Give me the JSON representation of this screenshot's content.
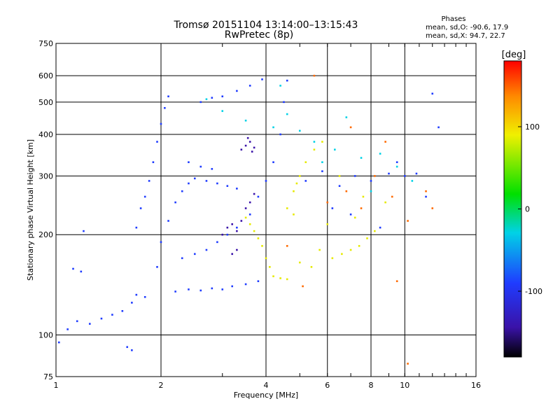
{
  "chart_data": {
    "type": "scatter",
    "title": "Tromsø 20151104 13:14:00–13:15:43",
    "subtitle": "RwPretec (8p)",
    "xlabel": "Frequency [MHz]",
    "ylabel": "Stationary phase Virtual Height [km]",
    "x_scale": "log",
    "y_scale": "log",
    "xlim": [
      1,
      16
    ],
    "ylim": [
      75,
      750
    ],
    "x_ticks": [
      1,
      2,
      4,
      6,
      8,
      10,
      16
    ],
    "x_ticks_labels": [
      "1",
      "2",
      "4",
      "6",
      "8",
      "10",
      "16"
    ],
    "y_ticks": [
      75,
      100,
      200,
      300,
      400,
      500,
      600,
      750
    ],
    "y_ticks_labels": [
      "75",
      "100",
      "200",
      "300",
      "400",
      "500",
      "600",
      "750"
    ],
    "grid": true,
    "stats": {
      "heading": "Phases",
      "line_o": "mean, sd,O: -90.6, 17.9",
      "line_x": "mean, sd,X:  94.7, 22.7"
    },
    "colorbar": {
      "label": "[deg]",
      "min": -180,
      "max": 180,
      "ticks": [
        100,
        0,
        -100
      ],
      "ticks_labels": [
        "100",
        "0",
        "-100"
      ]
    },
    "series": [
      {
        "phase_deg": -100,
        "color": "#1f3cff",
        "points": [
          {
            "x": 1.02,
            "y": 95
          },
          {
            "x": 1.08,
            "y": 104
          },
          {
            "x": 1.15,
            "y": 110
          },
          {
            "x": 1.25,
            "y": 108
          },
          {
            "x": 1.35,
            "y": 112
          },
          {
            "x": 1.45,
            "y": 115
          },
          {
            "x": 1.55,
            "y": 118
          },
          {
            "x": 1.65,
            "y": 125
          },
          {
            "x": 1.7,
            "y": 132
          },
          {
            "x": 1.8,
            "y": 130
          },
          {
            "x": 1.6,
            "y": 92
          },
          {
            "x": 1.65,
            "y": 90
          },
          {
            "x": 1.12,
            "y": 158
          },
          {
            "x": 1.18,
            "y": 155
          },
          {
            "x": 1.2,
            "y": 205
          },
          {
            "x": 1.7,
            "y": 210
          },
          {
            "x": 1.75,
            "y": 240
          },
          {
            "x": 1.8,
            "y": 260
          },
          {
            "x": 1.85,
            "y": 290
          },
          {
            "x": 1.9,
            "y": 330
          },
          {
            "x": 1.95,
            "y": 380
          },
          {
            "x": 2.0,
            "y": 430
          },
          {
            "x": 2.05,
            "y": 480
          },
          {
            "x": 2.1,
            "y": 520
          },
          {
            "x": 1.95,
            "y": 160
          },
          {
            "x": 2.0,
            "y": 190
          },
          {
            "x": 2.1,
            "y": 220
          },
          {
            "x": 2.2,
            "y": 250
          },
          {
            "x": 2.3,
            "y": 270
          },
          {
            "x": 2.4,
            "y": 285
          },
          {
            "x": 2.5,
            "y": 295
          },
          {
            "x": 2.7,
            "y": 290
          },
          {
            "x": 2.9,
            "y": 285
          },
          {
            "x": 3.1,
            "y": 280
          },
          {
            "x": 3.3,
            "y": 275
          },
          {
            "x": 2.2,
            "y": 135
          },
          {
            "x": 2.4,
            "y": 137
          },
          {
            "x": 2.6,
            "y": 136
          },
          {
            "x": 2.8,
            "y": 138
          },
          {
            "x": 3.0,
            "y": 137
          },
          {
            "x": 3.2,
            "y": 140
          },
          {
            "x": 3.5,
            "y": 142
          },
          {
            "x": 3.8,
            "y": 145
          },
          {
            "x": 2.3,
            "y": 170
          },
          {
            "x": 2.5,
            "y": 175
          },
          {
            "x": 2.7,
            "y": 180
          },
          {
            "x": 2.9,
            "y": 190
          },
          {
            "x": 3.1,
            "y": 200
          },
          {
            "x": 3.3,
            "y": 210
          },
          {
            "x": 3.6,
            "y": 230
          },
          {
            "x": 3.8,
            "y": 260
          },
          {
            "x": 4.0,
            "y": 290
          },
          {
            "x": 4.2,
            "y": 330
          },
          {
            "x": 4.4,
            "y": 400
          },
          {
            "x": 4.5,
            "y": 500
          },
          {
            "x": 4.6,
            "y": 580
          },
          {
            "x": 3.0,
            "y": 520
          },
          {
            "x": 3.3,
            "y": 540
          },
          {
            "x": 3.6,
            "y": 560
          },
          {
            "x": 3.9,
            "y": 585
          },
          {
            "x": 2.6,
            "y": 500
          },
          {
            "x": 2.8,
            "y": 515
          },
          {
            "x": 2.4,
            "y": 330
          },
          {
            "x": 2.6,
            "y": 320
          },
          {
            "x": 2.8,
            "y": 315
          },
          {
            "x": 5.2,
            "y": 290
          },
          {
            "x": 5.8,
            "y": 310
          },
          {
            "x": 6.5,
            "y": 280
          },
          {
            "x": 7.2,
            "y": 300
          },
          {
            "x": 8.0,
            "y": 290
          },
          {
            "x": 9.0,
            "y": 305
          },
          {
            "x": 10.0,
            "y": 300
          },
          {
            "x": 10.8,
            "y": 305
          },
          {
            "x": 6.2,
            "y": 240
          },
          {
            "x": 7.0,
            "y": 230
          },
          {
            "x": 8.5,
            "y": 210
          },
          {
            "x": 9.5,
            "y": 330
          },
          {
            "x": 12.0,
            "y": 530
          },
          {
            "x": 12.5,
            "y": 420
          },
          {
            "x": 11.5,
            "y": 260
          }
        ]
      },
      {
        "phase_deg": -140,
        "color": "#3a12a8",
        "points": [
          {
            "x": 3.0,
            "y": 200
          },
          {
            "x": 3.1,
            "y": 210
          },
          {
            "x": 3.2,
            "y": 215
          },
          {
            "x": 3.3,
            "y": 205
          },
          {
            "x": 3.4,
            "y": 220
          },
          {
            "x": 3.5,
            "y": 240
          },
          {
            "x": 3.6,
            "y": 250
          },
          {
            "x": 3.7,
            "y": 265
          },
          {
            "x": 3.4,
            "y": 360
          },
          {
            "x": 3.5,
            "y": 370
          },
          {
            "x": 3.6,
            "y": 380
          },
          {
            "x": 3.7,
            "y": 365
          },
          {
            "x": 3.55,
            "y": 390
          },
          {
            "x": 3.65,
            "y": 355
          },
          {
            "x": 3.2,
            "y": 175
          },
          {
            "x": 3.3,
            "y": 180
          }
        ]
      },
      {
        "phase_deg": 15,
        "color": "#00d2e6",
        "points": [
          {
            "x": 2.7,
            "y": 510
          },
          {
            "x": 3.0,
            "y": 470
          },
          {
            "x": 3.5,
            "y": 440
          },
          {
            "x": 4.2,
            "y": 420
          },
          {
            "x": 4.6,
            "y": 460
          },
          {
            "x": 5.0,
            "y": 410
          },
          {
            "x": 5.5,
            "y": 380
          },
          {
            "x": 6.3,
            "y": 360
          },
          {
            "x": 7.5,
            "y": 340
          },
          {
            "x": 8.5,
            "y": 350
          },
          {
            "x": 9.5,
            "y": 320
          },
          {
            "x": 10.5,
            "y": 290
          },
          {
            "x": 6.8,
            "y": 450
          },
          {
            "x": 8.0,
            "y": 270
          },
          {
            "x": 5.8,
            "y": 330
          },
          {
            "x": 4.4,
            "y": 560
          }
        ]
      },
      {
        "phase_deg": 95,
        "color": "#e6ea00",
        "points": [
          {
            "x": 3.5,
            "y": 225
          },
          {
            "x": 3.6,
            "y": 215
          },
          {
            "x": 3.7,
            "y": 205
          },
          {
            "x": 3.8,
            "y": 195
          },
          {
            "x": 3.9,
            "y": 185
          },
          {
            "x": 4.0,
            "y": 170
          },
          {
            "x": 4.1,
            "y": 160
          },
          {
            "x": 4.2,
            "y": 150
          },
          {
            "x": 4.4,
            "y": 148
          },
          {
            "x": 4.6,
            "y": 147
          },
          {
            "x": 4.8,
            "y": 270
          },
          {
            "x": 4.9,
            "y": 285
          },
          {
            "x": 5.0,
            "y": 300
          },
          {
            "x": 5.2,
            "y": 330
          },
          {
            "x": 5.5,
            "y": 360
          },
          {
            "x": 5.8,
            "y": 380
          },
          {
            "x": 6.2,
            "y": 170
          },
          {
            "x": 6.6,
            "y": 175
          },
          {
            "x": 7.0,
            "y": 180
          },
          {
            "x": 7.4,
            "y": 185
          },
          {
            "x": 7.8,
            "y": 195
          },
          {
            "x": 8.2,
            "y": 205
          },
          {
            "x": 5.0,
            "y": 165
          },
          {
            "x": 5.4,
            "y": 160
          },
          {
            "x": 5.7,
            "y": 180
          },
          {
            "x": 6.0,
            "y": 215
          },
          {
            "x": 7.2,
            "y": 225
          },
          {
            "x": 4.6,
            "y": 240
          },
          {
            "x": 4.8,
            "y": 230
          },
          {
            "x": 6.5,
            "y": 300
          },
          {
            "x": 7.6,
            "y": 260
          },
          {
            "x": 8.8,
            "y": 250
          }
        ]
      },
      {
        "phase_deg": 150,
        "color": "#ff6a00",
        "points": [
          {
            "x": 6.0,
            "y": 250
          },
          {
            "x": 6.8,
            "y": 270
          },
          {
            "x": 7.5,
            "y": 240
          },
          {
            "x": 8.2,
            "y": 300
          },
          {
            "x": 9.2,
            "y": 260
          },
          {
            "x": 10.2,
            "y": 220
          },
          {
            "x": 11.5,
            "y": 270
          },
          {
            "x": 5.5,
            "y": 600
          },
          {
            "x": 10.2,
            "y": 82
          },
          {
            "x": 7.0,
            "y": 420
          },
          {
            "x": 8.8,
            "y": 380
          },
          {
            "x": 12.0,
            "y": 240
          },
          {
            "x": 4.6,
            "y": 185
          },
          {
            "x": 5.1,
            "y": 140
          },
          {
            "x": 9.5,
            "y": 145
          }
        ]
      }
    ]
  }
}
